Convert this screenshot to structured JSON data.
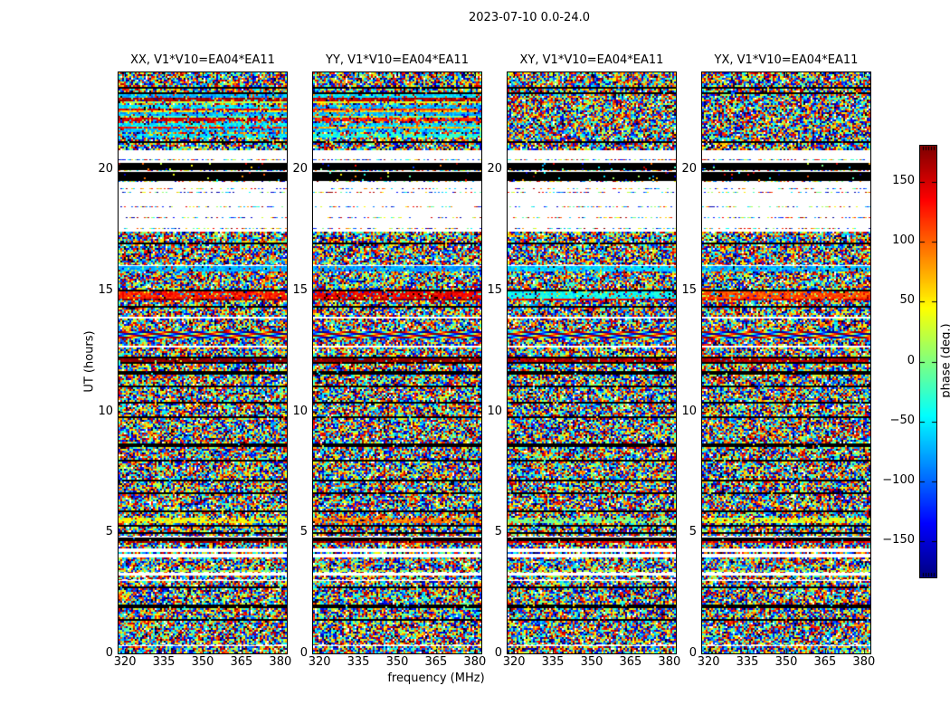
{
  "figure": {
    "title": "2023-07-10 0.0-24.0"
  },
  "axes": {
    "xlabel": "frequency (MHz)",
    "ylabel": "UT (hours)",
    "x_ticks": {
      "values": [
        320,
        335,
        350,
        365,
        380
      ],
      "labels": [
        "320",
        "335",
        "350",
        "365",
        "380"
      ]
    },
    "y_ticks": {
      "values": [
        0,
        5,
        10,
        15,
        20
      ],
      "labels": [
        "0",
        "5",
        "10",
        "15",
        "20"
      ]
    },
    "xlim": [
      317.5,
      382.5
    ],
    "ylim": [
      0,
      24
    ]
  },
  "panels": [
    {
      "pol": "XX",
      "title": "XX, V1*V10=EA04*EA11",
      "coherent_stripes": true
    },
    {
      "pol": "YY",
      "title": "YY, V1*V10=EA04*EA11",
      "coherent_stripes": true
    },
    {
      "pol": "XY",
      "title": "XY, V1*V10=EA04*EA11",
      "coherent_stripes": false
    },
    {
      "pol": "YX",
      "title": "YX, V1*V10=EA04*EA11",
      "coherent_stripes": false
    }
  ],
  "colorbar": {
    "label": "phase (deg.)",
    "tick_values": [
      150,
      100,
      50,
      0,
      -50,
      -100,
      -150
    ],
    "tick_labels": [
      "150",
      "100",
      "50",
      "0",
      "−50",
      "−100",
      "−150"
    ],
    "vmin": -180,
    "vmax": 180,
    "colormap": "jet"
  },
  "chart_data": {
    "type": "heatmap",
    "title": "2023-07-10 0.0-24.0",
    "subplot_titles": [
      "XX, V1*V10=EA04*EA11",
      "YY, V1*V10=EA04*EA11",
      "XY, V1*V10=EA04*EA11",
      "YX, V1*V10=EA04*EA11"
    ],
    "xlabel": "frequency (MHz)",
    "ylabel": "UT (hours)",
    "zlabel": "phase (deg.)",
    "x_range_mhz": [
      317.5,
      382.5
    ],
    "y_range_hours": [
      0,
      24
    ],
    "z_range_deg": [
      -180,
      180
    ],
    "colormap": "jet",
    "baseline": "V1*V10=EA04*EA11",
    "polarizations": [
      "XX",
      "YY",
      "XY",
      "YX"
    ],
    "description": "Phase vs frequency vs UT waterfall; pixel values are near-random phase noise organized in horizontal time bands (flagged white gaps, black dropout rows, and coherent colored stripes).",
    "bands": [
      {
        "from": 0.0,
        "to": 0.3,
        "type": "noise"
      },
      {
        "from": 0.3,
        "to": 0.4,
        "type": "sparse",
        "p": 0.5
      },
      {
        "from": 0.4,
        "to": 1.35,
        "type": "noise"
      },
      {
        "from": 1.35,
        "to": 1.45,
        "type": "black"
      },
      {
        "from": 1.45,
        "to": 1.9,
        "type": "noise"
      },
      {
        "from": 1.9,
        "to": 2.0,
        "type": "black"
      },
      {
        "from": 2.0,
        "to": 2.7,
        "type": "noise"
      },
      {
        "from": 2.7,
        "to": 2.8,
        "type": "black"
      },
      {
        "from": 2.8,
        "to": 3.0,
        "type": "noise"
      },
      {
        "from": 3.0,
        "to": 3.1,
        "type": "sparse",
        "p": 0.4
      },
      {
        "from": 3.1,
        "to": 3.25,
        "type": "noise"
      },
      {
        "from": 3.25,
        "to": 3.35,
        "type": "sparse",
        "p": 0.5
      },
      {
        "from": 3.35,
        "to": 3.47,
        "type": "solid",
        "t": 0.55,
        "mix": 0.5
      },
      {
        "from": 3.47,
        "to": 3.95,
        "type": "noise"
      },
      {
        "from": 3.95,
        "to": 4.1,
        "type": "white"
      },
      {
        "from": 4.1,
        "to": 4.22,
        "type": "noise"
      },
      {
        "from": 4.22,
        "to": 4.32,
        "type": "white"
      },
      {
        "from": 4.32,
        "to": 4.55,
        "type": "noise"
      },
      {
        "from": 4.55,
        "to": 4.65,
        "type": "solid",
        "t": [
          0.97,
          0.95,
          0.9,
          0.9
        ],
        "mix": 0.2
      },
      {
        "from": 4.65,
        "to": 4.75,
        "type": "black"
      },
      {
        "from": 4.75,
        "to": 4.87,
        "type": "sparse",
        "p": 0.5
      },
      {
        "from": 4.87,
        "to": 4.95,
        "type": "noise"
      },
      {
        "from": 4.95,
        "to": 5.03,
        "type": "black"
      },
      {
        "from": 5.03,
        "to": 5.23,
        "type": "noise"
      },
      {
        "from": 5.23,
        "to": 5.3,
        "type": "black"
      },
      {
        "from": 5.3,
        "to": 5.4,
        "type": "noise"
      },
      {
        "from": 5.4,
        "to": 5.62,
        "type": "solid",
        "t": [
          0.62,
          0.75,
          0.5,
          0.6
        ],
        "mix": 0.35
      },
      {
        "from": 5.62,
        "to": 5.83,
        "type": "noise"
      },
      {
        "from": 5.83,
        "to": 5.92,
        "type": "black"
      },
      {
        "from": 5.92,
        "to": 6.55,
        "type": "noise"
      },
      {
        "from": 6.55,
        "to": 6.63,
        "type": "black"
      },
      {
        "from": 6.63,
        "to": 7.1,
        "type": "noise"
      },
      {
        "from": 7.1,
        "to": 7.2,
        "type": "black"
      },
      {
        "from": 7.2,
        "to": 7.9,
        "type": "noise"
      },
      {
        "from": 7.9,
        "to": 8.0,
        "type": "black"
      },
      {
        "from": 8.0,
        "to": 8.55,
        "type": "noise"
      },
      {
        "from": 8.55,
        "to": 8.65,
        "type": "black"
      },
      {
        "from": 8.65,
        "to": 9.7,
        "type": "noise"
      },
      {
        "from": 9.7,
        "to": 9.8,
        "type": "black"
      },
      {
        "from": 9.8,
        "to": 10.3,
        "type": "noise"
      },
      {
        "from": 10.3,
        "to": 10.42,
        "type": "black"
      },
      {
        "from": 10.42,
        "to": 11.0,
        "type": "noise"
      },
      {
        "from": 11.0,
        "to": 11.1,
        "type": "black"
      },
      {
        "from": 11.1,
        "to": 11.55,
        "type": "noise"
      },
      {
        "from": 11.55,
        "to": 11.65,
        "type": "black"
      },
      {
        "from": 11.65,
        "to": 11.95,
        "type": "noise"
      },
      {
        "from": 11.95,
        "to": 12.05,
        "type": "black"
      },
      {
        "from": 12.05,
        "to": 12.2,
        "type": "solid",
        "t": [
          1.0,
          1.0,
          0.95,
          0.95
        ],
        "mix": 0.15
      },
      {
        "from": 12.2,
        "to": 12.28,
        "type": "black"
      },
      {
        "from": 12.28,
        "to": 12.62,
        "type": "noise"
      },
      {
        "from": 12.62,
        "to": 12.7,
        "type": "sparse",
        "p": 0.5
      },
      {
        "from": 12.7,
        "to": 13.0,
        "type": "noise"
      },
      {
        "from": 13.0,
        "to": 13.3,
        "type": "wave"
      },
      {
        "from": 13.3,
        "to": 13.85,
        "type": "noise"
      },
      {
        "from": 13.85,
        "to": 13.92,
        "type": "sparse",
        "p": 0.6
      },
      {
        "from": 13.92,
        "to": 14.25,
        "type": "noise"
      },
      {
        "from": 14.25,
        "to": 14.35,
        "type": "black"
      },
      {
        "from": 14.35,
        "to": 14.55,
        "type": "noise"
      },
      {
        "from": 14.55,
        "to": 14.63,
        "type": "solid",
        "t": [
          0.97,
          0.97,
          0.9,
          0.9
        ],
        "mix": 0.2
      },
      {
        "from": 14.63,
        "to": 14.95,
        "type": "solid",
        "t": [
          0.85,
          0.88,
          0.38,
          0.8
        ],
        "mix": 0.25
      },
      {
        "from": 14.95,
        "to": 15.03,
        "type": "black"
      },
      {
        "from": 15.03,
        "to": 15.8,
        "type": "noise"
      },
      {
        "from": 15.8,
        "to": 16.03,
        "type": "solid",
        "t": [
          0.3,
          0.28,
          0.33,
          0.3
        ],
        "mix": 0.2
      },
      {
        "from": 16.03,
        "to": 16.1,
        "type": "sparse",
        "p": 0.7
      },
      {
        "from": 16.1,
        "to": 16.9,
        "type": "noise"
      },
      {
        "from": 16.9,
        "to": 17.0,
        "type": "black"
      },
      {
        "from": 17.0,
        "to": 17.45,
        "type": "noise"
      },
      {
        "from": 17.45,
        "to": 17.55,
        "type": "sparse",
        "p": 0.5
      },
      {
        "from": 17.55,
        "to": 17.72,
        "type": "white"
      },
      {
        "from": 17.72,
        "to": 17.8,
        "type": "sparse",
        "p": 0.45
      },
      {
        "from": 17.8,
        "to": 17.95,
        "type": "white"
      },
      {
        "from": 17.95,
        "to": 18.03,
        "type": "sparse",
        "p": 0.45
      },
      {
        "from": 18.03,
        "to": 18.18,
        "type": "white"
      },
      {
        "from": 18.18,
        "to": 18.27,
        "type": "sparse",
        "p": 0.45
      },
      {
        "from": 18.27,
        "to": 18.4,
        "type": "white"
      },
      {
        "from": 18.4,
        "to": 18.5,
        "type": "sparse",
        "p": 0.5
      },
      {
        "from": 18.5,
        "to": 18.6,
        "type": "white"
      },
      {
        "from": 18.6,
        "to": 18.68,
        "type": "sparse",
        "p": 0.5
      },
      {
        "from": 18.68,
        "to": 18.78,
        "type": "white"
      },
      {
        "from": 18.78,
        "to": 18.86,
        "type": "sparse",
        "p": 0.45
      },
      {
        "from": 18.86,
        "to": 18.95,
        "type": "white"
      },
      {
        "from": 18.95,
        "to": 19.03,
        "type": "sparse",
        "p": 0.45
      },
      {
        "from": 19.03,
        "to": 19.15,
        "type": "white"
      },
      {
        "from": 19.15,
        "to": 19.25,
        "type": "sparse",
        "p": 0.35
      },
      {
        "from": 19.25,
        "to": 19.42,
        "type": "white"
      },
      {
        "from": 19.42,
        "to": 19.52,
        "type": "sparse",
        "p": 0.5
      },
      {
        "from": 19.52,
        "to": 19.9,
        "type": "black"
      },
      {
        "from": 19.9,
        "to": 20.0,
        "type": "sparse",
        "p": 0.5
      },
      {
        "from": 20.0,
        "to": 20.28,
        "type": "black"
      },
      {
        "from": 20.28,
        "to": 20.42,
        "type": "sparse",
        "p": 0.6
      },
      {
        "from": 20.42,
        "to": 20.72,
        "type": "white"
      },
      {
        "from": 20.72,
        "to": 20.8,
        "type": "sparse",
        "p": 0.5
      },
      {
        "from": 20.8,
        "to": 21.05,
        "type": "noise"
      },
      {
        "from": 21.05,
        "to": 21.18,
        "type": "black"
      },
      {
        "from": 21.18,
        "to": 21.32,
        "type": "noise"
      },
      {
        "from": 21.32,
        "to": 21.45,
        "type": "solid",
        "t": [
          0.35,
          0.4
        ],
        "coh": true
      },
      {
        "from": 21.45,
        "to": 21.55,
        "type": "noise"
      },
      {
        "from": 21.55,
        "to": 21.66,
        "type": "solid",
        "t": [
          0.3,
          0.32
        ],
        "coh": true
      },
      {
        "from": 21.66,
        "to": 21.76,
        "type": "solid",
        "t": [
          0.88,
          0.7
        ],
        "coh": true
      },
      {
        "from": 21.76,
        "to": 21.9,
        "type": "solid",
        "t": [
          0.36,
          0.33
        ],
        "coh": true
      },
      {
        "from": 21.9,
        "to": 22.0,
        "type": "noise"
      },
      {
        "from": 22.0,
        "to": 22.1,
        "type": "solid",
        "t": [
          0.92,
          0.85
        ],
        "coh": true
      },
      {
        "from": 22.1,
        "to": 22.22,
        "type": "solid",
        "t": [
          0.45,
          0.5
        ],
        "coh": true
      },
      {
        "from": 22.22,
        "to": 22.34,
        "type": "solid",
        "t": [
          0.3,
          0.3
        ],
        "coh": true
      },
      {
        "from": 22.34,
        "to": 22.44,
        "type": "solid",
        "t": [
          0.65,
          0.68
        ],
        "coh": true
      },
      {
        "from": 22.44,
        "to": 22.54,
        "type": "solid",
        "t": [
          0.9,
          0.82
        ],
        "coh": true
      },
      {
        "from": 22.54,
        "to": 22.64,
        "type": "solid",
        "t": [
          0.35,
          0.3
        ],
        "coh": true
      },
      {
        "from": 22.64,
        "to": 22.74,
        "type": "noise"
      },
      {
        "from": 22.74,
        "to": 22.84,
        "type": "solid",
        "t": [
          0.55,
          0.6
        ],
        "coh": true
      },
      {
        "from": 22.84,
        "to": 22.97,
        "type": "solid",
        "t": [
          0.97,
          0.95
        ],
        "coh": true
      },
      {
        "from": 22.97,
        "to": 23.07,
        "type": "solid",
        "t": [
          0.3,
          0.35
        ],
        "coh": true
      },
      {
        "from": 23.07,
        "to": 23.17,
        "type": "black"
      },
      {
        "from": 23.17,
        "to": 23.32,
        "type": "noise"
      },
      {
        "from": 23.32,
        "to": 23.4,
        "type": "black"
      },
      {
        "from": 23.4,
        "to": 24.01,
        "type": "noise"
      }
    ]
  }
}
